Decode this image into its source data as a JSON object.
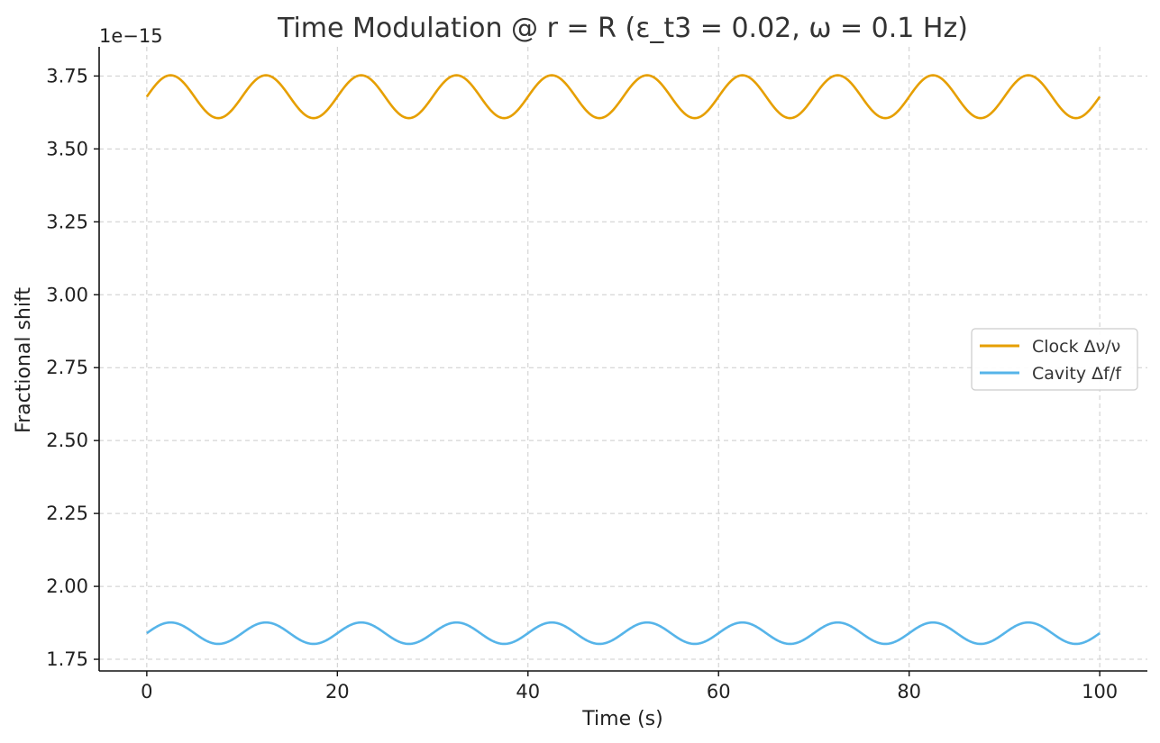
{
  "chart_data": {
    "type": "line",
    "title": "Time Modulation @ r = R (ε_t3 = 0.02, ω = 0.1 Hz)",
    "xlabel": "Time (s)",
    "ylabel": "Fractional shift",
    "y_offset_text": "1e−15",
    "xlim": [
      -5,
      105
    ],
    "ylim": [
      1.71,
      3.85
    ],
    "x_ticks": [
      0,
      20,
      40,
      60,
      80,
      100
    ],
    "y_ticks": [
      1.75,
      2.0,
      2.25,
      2.5,
      2.75,
      3.0,
      3.25,
      3.5,
      3.75
    ],
    "y_tick_labels": [
      "1.75",
      "2.00",
      "2.25",
      "2.50",
      "2.75",
      "3.00",
      "3.25",
      "3.50",
      "3.75"
    ],
    "grid": true,
    "legend_position": "center-right",
    "series": [
      {
        "name": "Clock Δν/ν",
        "color": "#E69F00",
        "function": "offset + amplitude*sin(2*pi*frequency*t)",
        "offset": 3.679,
        "amplitude": 0.0735,
        "frequency_hz": 0.1,
        "t_range": [
          0,
          100
        ]
      },
      {
        "name": "Cavity Δf/f",
        "color": "#56B4E9",
        "function": "offset + amplitude*sin(2*pi*frequency*t)",
        "offset": 1.8395,
        "amplitude": 0.0368,
        "frequency_hz": 0.1,
        "t_range": [
          0,
          100
        ]
      }
    ]
  }
}
